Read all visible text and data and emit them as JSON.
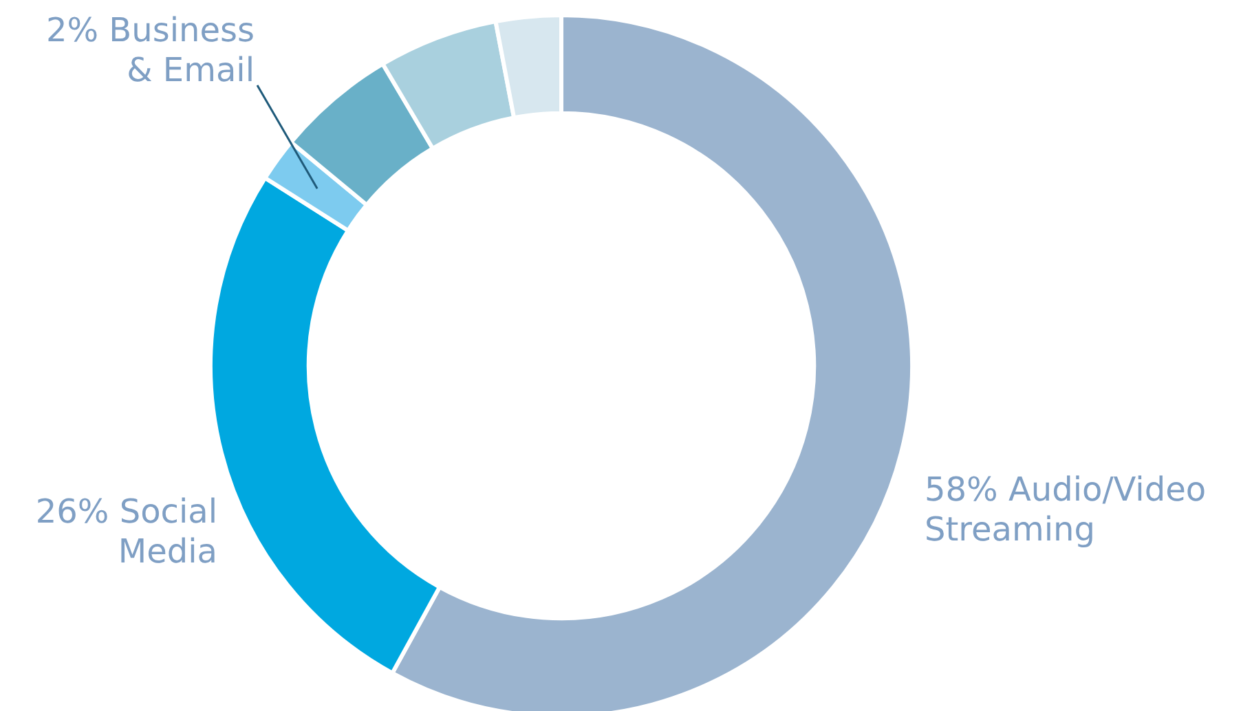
{
  "chart_data": {
    "type": "donut",
    "categories": [
      "Audio/Video Streaming",
      "Social Media",
      "Business & Email",
      null,
      null,
      null
    ],
    "values": [
      58,
      26,
      2,
      5.5,
      5.5,
      3
    ],
    "value_labels": [
      "58%",
      "26%",
      "2%",
      null,
      null,
      null
    ],
    "colors": [
      "#9bb4cf",
      "#00a8e0",
      "#7dcbef",
      "#69b0c8",
      "#a9d0de",
      "#d7e7ef"
    ]
  }
}
